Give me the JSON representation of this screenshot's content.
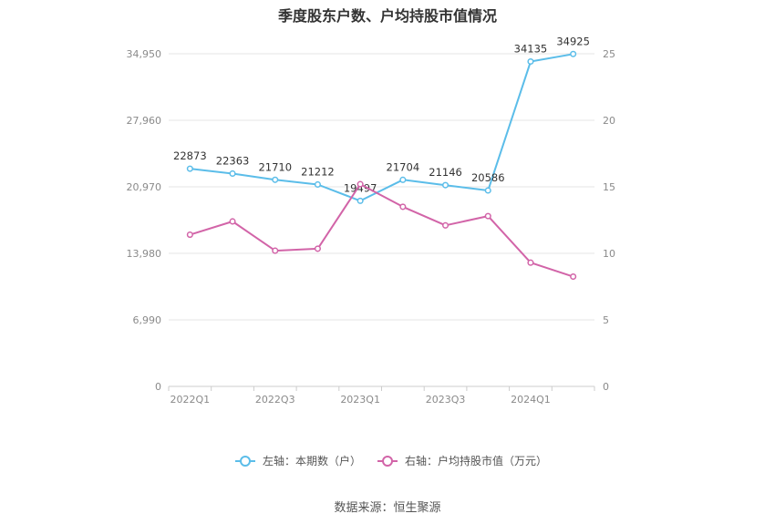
{
  "chart_data": {
    "type": "line",
    "title": "季度股东户数、户均持股市值情况",
    "categories": [
      "2022Q1",
      "2022Q2",
      "2022Q3",
      "2022Q4",
      "2023Q1",
      "2023Q2",
      "2023Q3",
      "2023Q4",
      "2024Q1",
      "2024Q2"
    ],
    "x_tick_labels": [
      "2022Q1",
      "",
      "2022Q3",
      "",
      "2023Q1",
      "",
      "2023Q3",
      "",
      "2024Q1",
      ""
    ],
    "left_axis": {
      "ylim": [
        0,
        34950
      ],
      "ticks": [
        0,
        6990,
        13980,
        20970,
        27960,
        34950
      ],
      "tick_labels": [
        "0",
        "6,990",
        "13,980",
        "20,970",
        "27,960",
        "34,950"
      ]
    },
    "right_axis": {
      "ylim": [
        0,
        25
      ],
      "ticks": [
        0,
        5,
        10,
        15,
        20,
        25
      ],
      "tick_labels": [
        "0",
        "5",
        "10",
        "15",
        "20",
        "25"
      ]
    },
    "series": [
      {
        "name": "左轴：本期数（户）",
        "axis": "left",
        "color": "#5bbde9",
        "values": [
          22873,
          22363,
          21710,
          21212,
          19497,
          21704,
          21146,
          20586,
          34135,
          34925
        ],
        "labels": [
          "22873",
          "22363",
          "21710",
          "21212",
          "19497",
          "21704",
          "21146",
          "20586",
          "34135",
          "34925"
        ]
      },
      {
        "name": "右轴：户均持股市值（万元）",
        "axis": "right",
        "color": "#d264a8",
        "values": [
          11.4,
          12.4,
          10.2,
          10.35,
          15.2,
          13.5,
          12.1,
          12.8,
          9.3,
          8.25
        ]
      }
    ],
    "grid": true,
    "legend_position": "bottom-center"
  },
  "source": "数据来源：恒生聚源"
}
